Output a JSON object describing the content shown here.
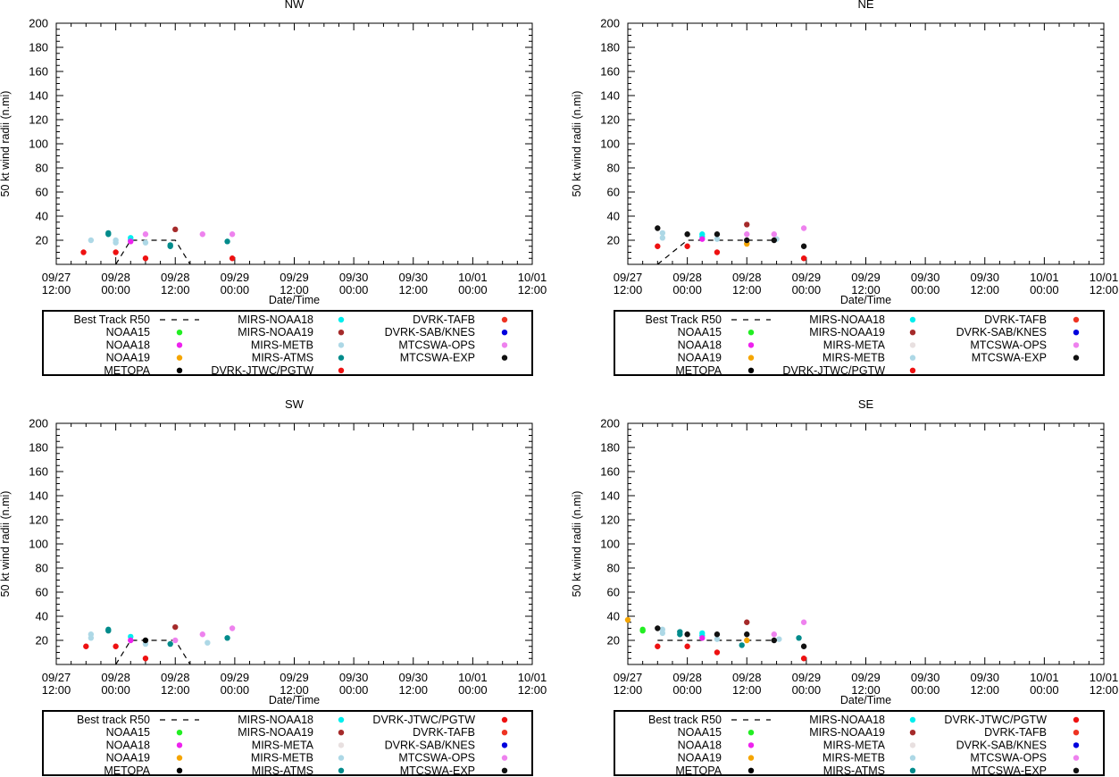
{
  "colors": {
    "NOAA15": "#22ee22",
    "NOAA18": "#ee22ee",
    "NOAA19": "#f5a500",
    "METOPA": "#000000",
    "MIRS-NOAA18": "#00eeee",
    "MIRS-NOAA19": "#a52a2a",
    "MIRS-META": "#e8e0e0",
    "MIRS-METB": "#add8e6",
    "MIRS-ATMS": "#008b8b",
    "DVRK-JTWC/PGTW": "#ee1111",
    "DVRK-TAFB": "#ee3322",
    "DVRK-SAB/KNES": "#0000dd",
    "MTCSWA-OPS": "#ee82ee",
    "MTCSWA-EXP": "#111111"
  },
  "chart_data": [
    {
      "type": "scatter",
      "title": "NW",
      "xlabel": "Date/Time",
      "ylabel": "50 kt wind radii (n.mi)",
      "ylim": [
        0,
        200
      ],
      "xlim": [
        0,
        96
      ],
      "x_unit": "hours since 09/27 12:00",
      "y_ticks": [
        "200",
        "180",
        "160",
        "140",
        "120",
        "100",
        "80",
        "60",
        "40",
        "20"
      ],
      "x_ticks": [
        [
          "09/27",
          "12:00"
        ],
        [
          "09/28",
          "00:00"
        ],
        [
          "09/28",
          "12:00"
        ],
        [
          "09/29",
          "00:00"
        ],
        [
          "09/29",
          "12:00"
        ],
        [
          "09/30",
          "00:00"
        ],
        [
          "09/30",
          "12:00"
        ],
        [
          "10/01",
          "00:00"
        ],
        [
          "10/01",
          "12:00"
        ]
      ],
      "best_track": [
        [
          12,
          0
        ],
        [
          15,
          20
        ],
        [
          24,
          20
        ],
        [
          27,
          0
        ]
      ],
      "series": [
        {
          "name": "MIRS-METB",
          "x": [
            7,
            12,
            12,
            18
          ],
          "y": [
            20,
            18,
            20,
            18
          ]
        },
        {
          "name": "MIRS-ATMS",
          "x": [
            10.5,
            10.5,
            23,
            23,
            34.5
          ],
          "y": [
            25,
            26,
            15,
            16,
            19
          ]
        },
        {
          "name": "MIRS-NOAA18",
          "x": [
            15,
            15
          ],
          "y": [
            20,
            22
          ]
        },
        {
          "name": "NOAA18",
          "x": [
            15
          ],
          "y": [
            19
          ]
        },
        {
          "name": "MTCSWA-OPS",
          "x": [
            18,
            29.5,
            35.5
          ],
          "y": [
            25,
            25,
            25
          ]
        },
        {
          "name": "DVRK-JTWC/PGTW",
          "x": [
            5.5,
            12,
            18,
            35.5
          ],
          "y": [
            10,
            10,
            5,
            5
          ]
        },
        {
          "name": "MIRS-NOAA19",
          "x": [
            24
          ],
          "y": [
            29
          ]
        }
      ],
      "legend_rows": [
        [
          {
            "label": "Best Track R50",
            "series": "best"
          },
          {
            "label": "MIRS-NOAA18",
            "series": "MIRS-NOAA18"
          },
          {
            "label": "DVRK-TAFB",
            "series": "DVRK-TAFB"
          }
        ],
        [
          {
            "label": "NOAA15",
            "series": "NOAA15"
          },
          {
            "label": "MIRS-NOAA19",
            "series": "MIRS-NOAA19"
          },
          {
            "label": "DVRK-SAB/KNES",
            "series": "DVRK-SAB/KNES"
          }
        ],
        [
          {
            "label": "NOAA18",
            "series": "NOAA18"
          },
          {
            "label": "MIRS-METB",
            "series": "MIRS-METB"
          },
          {
            "label": "MTCSWA-OPS",
            "series": "MTCSWA-OPS"
          }
        ],
        [
          {
            "label": "NOAA19",
            "series": "NOAA19"
          },
          {
            "label": "MIRS-ATMS",
            "series": "MIRS-ATMS"
          },
          {
            "label": "MTCSWA-EXP",
            "series": "MTCSWA-EXP"
          }
        ],
        [
          {
            "label": "METOPA",
            "series": "METOPA"
          },
          {
            "label": "DVRK-JTWC/PGTW",
            "series": "DVRK-JTWC/PGTW"
          }
        ]
      ]
    },
    {
      "type": "scatter",
      "title": "NE",
      "xlabel": "Date/Time",
      "ylabel": "50 kt wind radii (n.mi)",
      "ylim": [
        0,
        200
      ],
      "xlim": [
        0,
        96
      ],
      "x_unit": "hours since 09/27 12:00",
      "y_ticks": [
        "200",
        "180",
        "160",
        "140",
        "120",
        "100",
        "80",
        "60",
        "40",
        "20"
      ],
      "x_ticks": [
        [
          "09/27",
          "12:00"
        ],
        [
          "09/28",
          "00:00"
        ],
        [
          "09/28",
          "12:00"
        ],
        [
          "09/29",
          "00:00"
        ],
        [
          "09/29",
          "12:00"
        ],
        [
          "09/30",
          "00:00"
        ],
        [
          "09/30",
          "12:00"
        ],
        [
          "10/01",
          "00:00"
        ],
        [
          "10/01",
          "12:00"
        ]
      ],
      "best_track": [
        [
          6,
          0
        ],
        [
          12,
          20
        ],
        [
          30,
          20
        ]
      ],
      "series": [
        {
          "name": "MIRS-METB",
          "x": [
            7,
            7,
            18,
            30
          ],
          "y": [
            22,
            26,
            21,
            21
          ]
        },
        {
          "name": "MIRS-NOAA18",
          "x": [
            15,
            15
          ],
          "y": [
            23,
            25
          ]
        },
        {
          "name": "NOAA18",
          "x": [
            15
          ],
          "y": [
            21
          ]
        },
        {
          "name": "MTCSWA-OPS",
          "x": [
            24,
            29.5,
            35.5
          ],
          "y": [
            25,
            25,
            30
          ]
        },
        {
          "name": "MIRS-NOAA19",
          "x": [
            24
          ],
          "y": [
            33
          ]
        },
        {
          "name": "NOAA19",
          "x": [
            24
          ],
          "y": [
            17
          ]
        },
        {
          "name": "DVRK-JTWC/PGTW",
          "x": [
            6,
            12,
            18,
            35.5
          ],
          "y": [
            15,
            15,
            10,
            5
          ]
        },
        {
          "name": "MTCSWA-EXP",
          "x": [
            6,
            12,
            18,
            24,
            29.5,
            35.5
          ],
          "y": [
            30,
            25,
            25,
            20,
            20,
            15
          ]
        }
      ],
      "legend_rows": [
        [
          {
            "label": "Best Track R50",
            "series": "best"
          },
          {
            "label": "MIRS-NOAA18",
            "series": "MIRS-NOAA18"
          },
          {
            "label": "DVRK-TAFB",
            "series": "DVRK-TAFB"
          }
        ],
        [
          {
            "label": "NOAA15",
            "series": "NOAA15"
          },
          {
            "label": "MIRS-NOAA19",
            "series": "MIRS-NOAA19"
          },
          {
            "label": "DVRK-SAB/KNES",
            "series": "DVRK-SAB/KNES"
          }
        ],
        [
          {
            "label": "NOAA18",
            "series": "NOAA18"
          },
          {
            "label": "MIRS-META",
            "series": "MIRS-META"
          },
          {
            "label": "MTCSWA-OPS",
            "series": "MTCSWA-OPS"
          }
        ],
        [
          {
            "label": "NOAA19",
            "series": "NOAA19"
          },
          {
            "label": "MIRS-METB",
            "series": "MIRS-METB"
          },
          {
            "label": "MTCSWA-EXP",
            "series": "MTCSWA-EXP"
          }
        ],
        [
          {
            "label": "METOPA",
            "series": "METOPA"
          },
          {
            "label": "DVRK-JTWC/PGTW",
            "series": "DVRK-JTWC/PGTW"
          }
        ]
      ]
    },
    {
      "type": "scatter",
      "title": "SW",
      "xlabel": "Date/Time",
      "ylabel": "50 kt wind radii (n.mi)",
      "ylim": [
        0,
        200
      ],
      "xlim": [
        0,
        96
      ],
      "x_unit": "hours since 09/27 12:00",
      "y_ticks": [
        "200",
        "180",
        "160",
        "140",
        "120",
        "100",
        "80",
        "60",
        "40",
        "20"
      ],
      "x_ticks": [
        [
          "09/27",
          "12:00"
        ],
        [
          "09/28",
          "00:00"
        ],
        [
          "09/28",
          "12:00"
        ],
        [
          "09/29",
          "00:00"
        ],
        [
          "09/29",
          "12:00"
        ],
        [
          "09/30",
          "00:00"
        ],
        [
          "09/30",
          "12:00"
        ],
        [
          "10/01",
          "00:00"
        ],
        [
          "10/01",
          "12:00"
        ]
      ],
      "best_track": [
        [
          12,
          0
        ],
        [
          15,
          20
        ],
        [
          24,
          20
        ],
        [
          27,
          0
        ]
      ],
      "series": [
        {
          "name": "MIRS-METB",
          "x": [
            7,
            7,
            18,
            30.5
          ],
          "y": [
            22,
            25,
            17,
            18
          ]
        },
        {
          "name": "MIRS-ATMS",
          "x": [
            10.5,
            10.5,
            23,
            34.5
          ],
          "y": [
            28,
            29,
            17,
            22
          ]
        },
        {
          "name": "MIRS-NOAA18",
          "x": [
            15
          ],
          "y": [
            23
          ]
        },
        {
          "name": "NOAA18",
          "x": [
            15
          ],
          "y": [
            20
          ]
        },
        {
          "name": "MTCSWA-OPS",
          "x": [
            24,
            29.5,
            35.5
          ],
          "y": [
            20,
            25,
            30
          ]
        },
        {
          "name": "MIRS-NOAA19",
          "x": [
            24
          ],
          "y": [
            31
          ]
        },
        {
          "name": "METOPA",
          "x": [
            18
          ],
          "y": [
            20
          ]
        },
        {
          "name": "DVRK-JTWC/PGTW",
          "x": [
            6,
            12,
            18
          ],
          "y": [
            15,
            15,
            5
          ]
        }
      ],
      "legend_rows": [
        [
          {
            "label": "Best track R50",
            "series": "best"
          },
          {
            "label": "MIRS-NOAA18",
            "series": "MIRS-NOAA18"
          },
          {
            "label": "DVRK-JTWC/PGTW",
            "series": "DVRK-JTWC/PGTW"
          }
        ],
        [
          {
            "label": "NOAA15",
            "series": "NOAA15"
          },
          {
            "label": "MIRS-NOAA19",
            "series": "MIRS-NOAA19"
          },
          {
            "label": "DVRK-TAFB",
            "series": "DVRK-TAFB"
          }
        ],
        [
          {
            "label": "NOAA18",
            "series": "NOAA18"
          },
          {
            "label": "MIRS-META",
            "series": "MIRS-META"
          },
          {
            "label": "DVRK-SAB/KNES",
            "series": "DVRK-SAB/KNES"
          }
        ],
        [
          {
            "label": "NOAA19",
            "series": "NOAA19"
          },
          {
            "label": "MIRS-METB",
            "series": "MIRS-METB"
          },
          {
            "label": "MTCSWA-OPS",
            "series": "MTCSWA-OPS"
          }
        ],
        [
          {
            "label": "METOPA",
            "series": "METOPA"
          },
          {
            "label": "MIRS-ATMS",
            "series": "MIRS-ATMS"
          },
          {
            "label": "MTCSWA-EXP",
            "series": "MTCSWA-EXP"
          }
        ]
      ]
    },
    {
      "type": "scatter",
      "title": "SE",
      "xlabel": "Date/Time",
      "ylabel": "50 kt wind radii (n.mi)",
      "ylim": [
        0,
        200
      ],
      "xlim": [
        0,
        96
      ],
      "x_unit": "hours since 09/27 12:00",
      "y_ticks": [
        "200",
        "180",
        "160",
        "140",
        "120",
        "100",
        "80",
        "60",
        "40",
        "20"
      ],
      "x_ticks": [
        [
          "09/27",
          "12:00"
        ],
        [
          "09/28",
          "00:00"
        ],
        [
          "09/28",
          "12:00"
        ],
        [
          "09/29",
          "00:00"
        ],
        [
          "09/29",
          "12:00"
        ],
        [
          "09/30",
          "00:00"
        ],
        [
          "09/30",
          "12:00"
        ],
        [
          "10/01",
          "00:00"
        ],
        [
          "10/01",
          "12:00"
        ]
      ],
      "best_track": [
        [
          6,
          20
        ],
        [
          30,
          20
        ]
      ],
      "series": [
        {
          "name": "NOAA19",
          "x": [
            0,
            24
          ],
          "y": [
            37,
            20
          ]
        },
        {
          "name": "NOAA15",
          "x": [
            3,
            3
          ],
          "y": [
            28,
            29
          ]
        },
        {
          "name": "MIRS-METB",
          "x": [
            7,
            7,
            18,
            30.5
          ],
          "y": [
            26,
            29,
            21,
            21
          ]
        },
        {
          "name": "MIRS-ATMS",
          "x": [
            10.5,
            10.5,
            23,
            34.5
          ],
          "y": [
            25,
            27,
            16,
            22
          ]
        },
        {
          "name": "MIRS-NOAA18",
          "x": [
            15,
            15
          ],
          "y": [
            24,
            26
          ]
        },
        {
          "name": "NOAA18",
          "x": [
            15
          ],
          "y": [
            22
          ]
        },
        {
          "name": "MTCSWA-OPS",
          "x": [
            29.5,
            35.5
          ],
          "y": [
            25,
            35
          ]
        },
        {
          "name": "MIRS-NOAA19",
          "x": [
            24
          ],
          "y": [
            35
          ]
        },
        {
          "name": "DVRK-JTWC/PGTW",
          "x": [
            6,
            12,
            18,
            35.5
          ],
          "y": [
            15,
            15,
            10,
            5
          ]
        },
        {
          "name": "MTCSWA-EXP",
          "x": [
            6,
            12,
            18,
            24,
            29.5,
            35.5
          ],
          "y": [
            30,
            25,
            25,
            25,
            20,
            15
          ]
        }
      ],
      "legend_rows": [
        [
          {
            "label": "Best track R50",
            "series": "best"
          },
          {
            "label": "MIRS-NOAA18",
            "series": "MIRS-NOAA18"
          },
          {
            "label": "DVRK-JTWC/PGTW",
            "series": "DVRK-JTWC/PGTW"
          }
        ],
        [
          {
            "label": "NOAA15",
            "series": "NOAA15"
          },
          {
            "label": "MIRS-NOAA19",
            "series": "MIRS-NOAA19"
          },
          {
            "label": "DVRK-TAFB",
            "series": "DVRK-TAFB"
          }
        ],
        [
          {
            "label": "NOAA18",
            "series": "NOAA18"
          },
          {
            "label": "MIRS-META",
            "series": "MIRS-META"
          },
          {
            "label": "DVRK-SAB/KNES",
            "series": "DVRK-SAB/KNES"
          }
        ],
        [
          {
            "label": "NOAA19",
            "series": "NOAA19"
          },
          {
            "label": "MIRS-METB",
            "series": "MIRS-METB"
          },
          {
            "label": "MTCSWA-OPS",
            "series": "MTCSWA-OPS"
          }
        ],
        [
          {
            "label": "METOPA",
            "series": "METOPA"
          },
          {
            "label": "MIRS-ATMS",
            "series": "MIRS-ATMS"
          },
          {
            "label": "MTCSWA-EXP",
            "series": "MTCSWA-EXP"
          }
        ]
      ]
    }
  ]
}
